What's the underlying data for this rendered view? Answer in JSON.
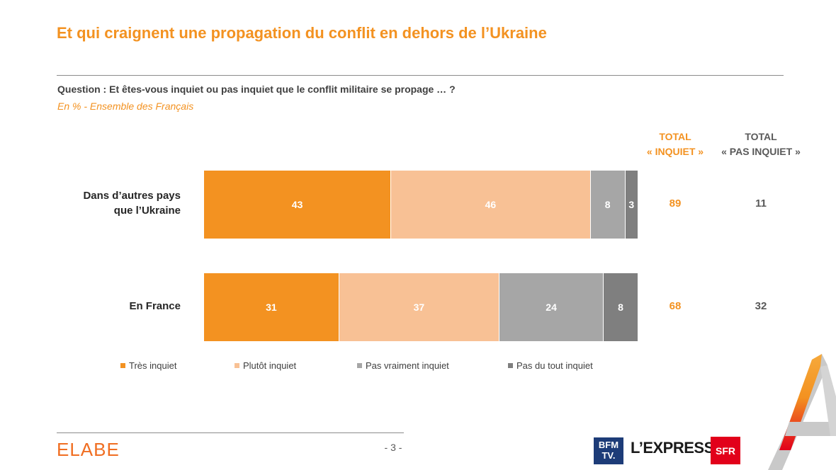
{
  "title": "Et qui craignent une propagation du conflit en dehors de l’Ukraine",
  "question": "Question : Et êtes-vous inquiet ou pas inquiet que le conflit militaire se propage … ?",
  "subtitle": "En % - Ensemble des Français",
  "column_headers": {
    "inquiet_line1": "TOTAL",
    "inquiet_line2": "« INQUIET »",
    "pas_inquiet_line1": "TOTAL",
    "pas_inquiet_line2": "« PAS INQUIET »"
  },
  "colors": {
    "tres_inquiet": "#f39221",
    "plutot_inquiet": "#f8c195",
    "pas_vraiment_inquiet": "#a6a6a6",
    "pas_du_tout_inquiet": "#7f7f7f"
  },
  "chart_data": {
    "type": "bar",
    "orientation": "horizontal",
    "stacked": true,
    "title": "Et qui craignent une propagation du conflit en dehors de l’Ukraine",
    "categories": [
      "Dans d’autres pays que l’Ukraine",
      "En France"
    ],
    "category_lines": [
      [
        "Dans d’autres pays",
        "que l’Ukraine"
      ],
      [
        "En France"
      ]
    ],
    "series": [
      {
        "name": "Très inquiet",
        "color": "#f39221",
        "values": [
          43,
          31
        ]
      },
      {
        "name": "Plutôt inquiet",
        "color": "#f8c195",
        "values": [
          46,
          37
        ]
      },
      {
        "name": "Pas vraiment inquiet",
        "color": "#a6a6a6",
        "values": [
          8,
          24
        ]
      },
      {
        "name": "Pas du tout inquiet",
        "color": "#7f7f7f",
        "values": [
          3,
          8
        ]
      }
    ],
    "totals": {
      "inquiet": [
        89,
        68
      ],
      "pas_inquiet": [
        11,
        32
      ]
    },
    "xlim": [
      0,
      100
    ],
    "grid": false,
    "legend_position": "bottom"
  },
  "footer": {
    "brand": "ELABE",
    "page": "- 3 -",
    "partners": {
      "bfm_line1": "BFM",
      "bfm_line2": "TV.",
      "express": "L’EXPRESS",
      "sfr": "SFR"
    }
  }
}
